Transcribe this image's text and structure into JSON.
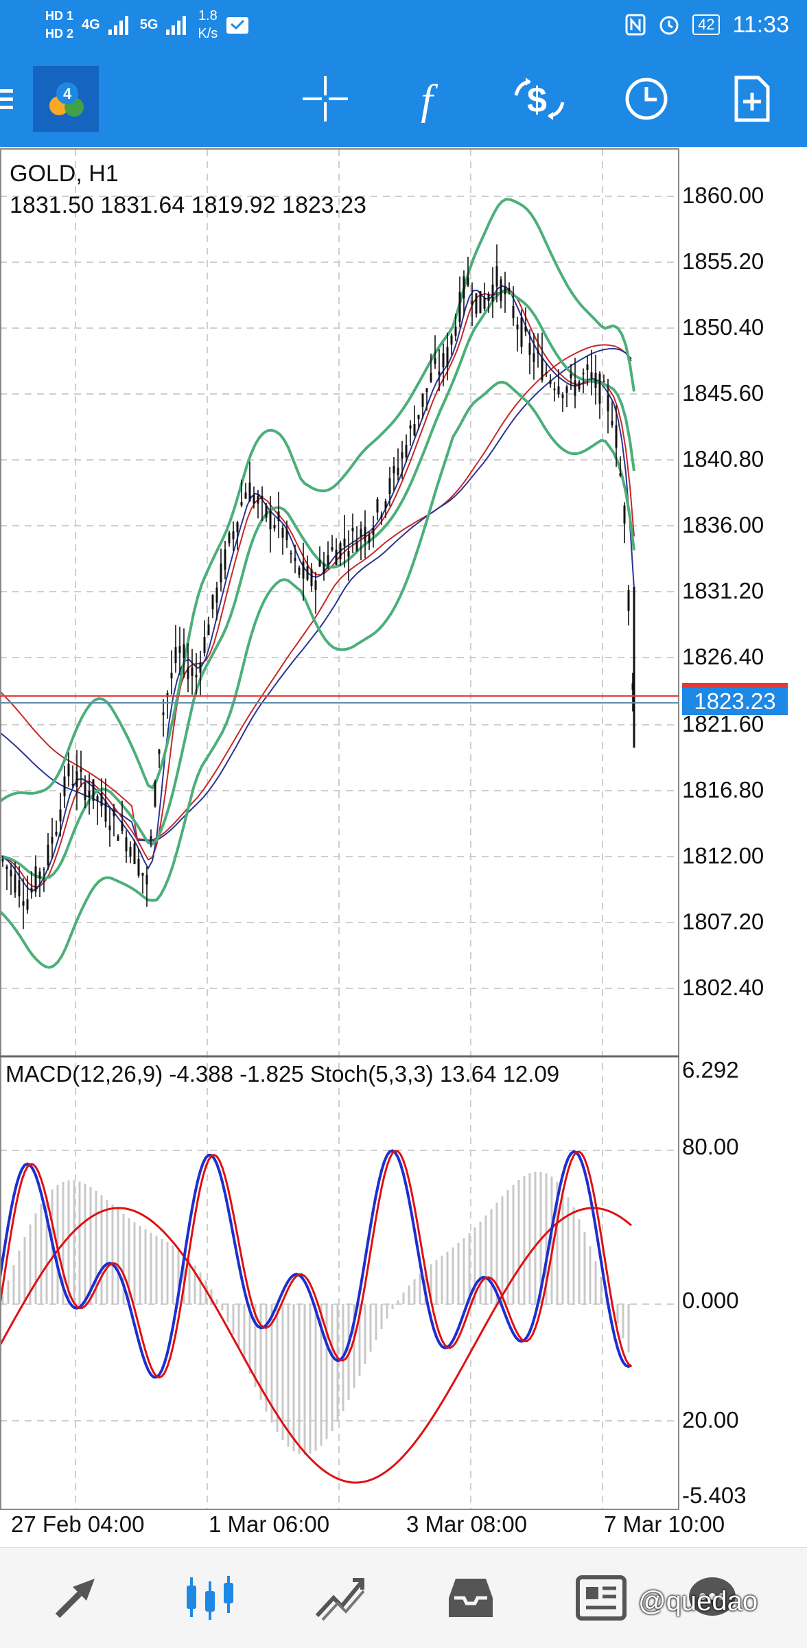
{
  "status_bar": {
    "network_1": "HD 1",
    "network_2": "HD 2",
    "signal_1": "4G",
    "signal_2": "5G",
    "speed": "1.8",
    "speed_unit": "K/s",
    "battery": "42",
    "time": "11:33"
  },
  "toolbar": {
    "icons": [
      "menu-icon",
      "metatrader-logo",
      "crosshair-icon",
      "function-icon",
      "trade-icon",
      "clock-icon",
      "new-document-icon"
    ]
  },
  "chart": {
    "symbol": "GOLD, H1",
    "ohlc": "1831.50 1831.64 1819.92 1823.23",
    "current_price": "1823.23",
    "price_axis": [
      "1860.00",
      "1855.20",
      "1850.40",
      "1845.60",
      "1840.80",
      "1836.00",
      "1831.20",
      "1826.40",
      "1821.60",
      "1816.80",
      "1812.00",
      "1807.20",
      "1802.40"
    ],
    "indicator_caption": "MACD(12,26,9) -4.388 -1.825 Stoch(5,3,3) 13.64 12.09",
    "indicator_axis": [
      "6.292",
      "80.00",
      "0.000",
      "20.00",
      "-5.403"
    ],
    "time_axis": [
      "27 Feb 04:00",
      "1 Mar 06:00",
      "3 Mar 08:00",
      "7 Mar 10:00"
    ],
    "colors": {
      "bollinger": "#4caf7a",
      "ma_red": "#c62828",
      "ma_blue": "#283593",
      "stoch_main": "#1e2fd0",
      "stoch_signal": "#e01010",
      "accent": "#1e88e5"
    }
  },
  "chart_data": {
    "type": "line",
    "x": [
      "27 Feb 04:00",
      "1 Mar 06:00",
      "3 Mar 08:00",
      "7 Mar 10:00"
    ],
    "series": [
      {
        "name": "GOLD, H1",
        "values": [
          1812.0,
          1836.0,
          1846.0,
          1823.23
        ]
      }
    ],
    "ylim": [
      1800.0,
      1862.4
    ]
  },
  "bottom_nav": {
    "items": [
      "quotes-icon",
      "chart-icon",
      "trade-icon",
      "history-icon",
      "news-icon",
      "chat-icon"
    ],
    "watermark": "@quedao"
  }
}
